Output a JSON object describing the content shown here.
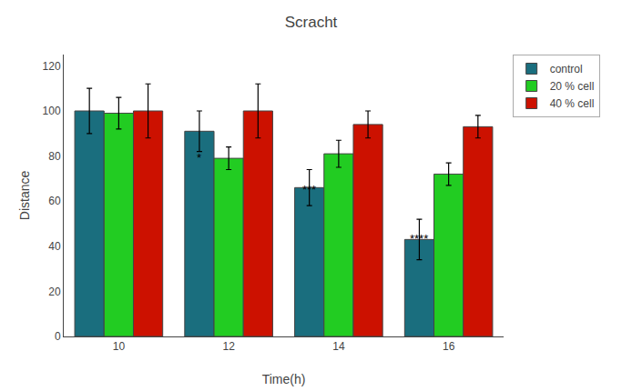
{
  "chart_data": {
    "type": "bar",
    "title": "Scracht",
    "xlabel": "Time(h)",
    "ylabel": "Distance",
    "categories": [
      "10",
      "12",
      "14",
      "16"
    ],
    "series": [
      {
        "name": "control",
        "color": "#1a6e7e",
        "values": [
          100,
          91,
          66,
          43
        ],
        "errors": [
          10,
          9,
          8,
          9
        ]
      },
      {
        "name": "20 % cell",
        "color": "#22cc22",
        "values": [
          99,
          79,
          81,
          72
        ],
        "errors": [
          7,
          5,
          6,
          5
        ]
      },
      {
        "name": "40 % cell",
        "color": "#cc1100",
        "values": [
          100,
          100,
          94,
          93
        ],
        "errors": [
          12,
          12,
          6,
          5
        ]
      }
    ],
    "annotations": [
      {
        "text": "*",
        "category": "12",
        "series": "control",
        "y": 83
      },
      {
        "text": "***",
        "category": "14",
        "series": "control",
        "y": 69
      },
      {
        "text": "****",
        "category": "16",
        "series": "control",
        "y": 47
      }
    ],
    "ylim": [
      0,
      125
    ],
    "yticks": [
      0,
      20,
      40,
      60,
      80,
      100,
      120
    ],
    "grid": false,
    "legend": "upper right"
  }
}
